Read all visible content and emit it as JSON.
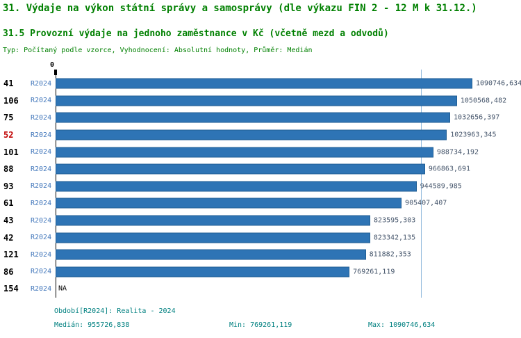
{
  "title1": "31. Výdaje na výkon státní správy a samosprávy (dle výkazu FIN 2 - 12 M k 31.12.)",
  "title2": "31.5 Provozní výdaje na jednoho zaměstnance v Kč (včetně mezd a odvodů)",
  "subtitle": "Typ: Počítaný podle vzorce, Vyhodnocení: Absolutní hodnoty, Průměr: Medián",
  "chart_data": {
    "type": "bar",
    "orientation": "horizontal",
    "axis_origin_label": "0",
    "series_label": "R2024",
    "xmax": 1090746.634,
    "median_value": 955726.838,
    "bar_color": "#2e74b5",
    "median_line_color": "#8fb8dc",
    "rows": [
      {
        "id": "41",
        "period": "R2024",
        "value": 1090746.634,
        "label": "1090746,634",
        "highlight": false
      },
      {
        "id": "106",
        "period": "R2024",
        "value": 1050568.482,
        "label": "1050568,482",
        "highlight": false
      },
      {
        "id": "75",
        "period": "R2024",
        "value": 1032656.397,
        "label": "1032656,397",
        "highlight": false
      },
      {
        "id": "52",
        "period": "R2024",
        "value": 1023963.345,
        "label": "1023963,345",
        "highlight": true
      },
      {
        "id": "101",
        "period": "R2024",
        "value": 988734.192,
        "label": "988734,192",
        "highlight": false
      },
      {
        "id": "88",
        "period": "R2024",
        "value": 966863.691,
        "label": "966863,691",
        "highlight": false
      },
      {
        "id": "93",
        "period": "R2024",
        "value": 944589.985,
        "label": "944589,985",
        "highlight": false
      },
      {
        "id": "61",
        "period": "R2024",
        "value": 905407.407,
        "label": "905407,407",
        "highlight": false
      },
      {
        "id": "43",
        "period": "R2024",
        "value": 823595.303,
        "label": "823595,303",
        "highlight": false
      },
      {
        "id": "42",
        "period": "R2024",
        "value": 823342.135,
        "label": "823342,135",
        "highlight": false
      },
      {
        "id": "121",
        "period": "R2024",
        "value": 811882.353,
        "label": "811882,353",
        "highlight": false
      },
      {
        "id": "86",
        "period": "R2024",
        "value": 769261.119,
        "label": "769261,119",
        "highlight": false
      },
      {
        "id": "154",
        "period": "R2024",
        "value": null,
        "label": "NA",
        "highlight": false
      }
    ]
  },
  "footer": {
    "period_line": "Období[R2024]: Realita - 2024",
    "median": "Medián: 955726,838",
    "min": "Min: 769261,119",
    "max": "Max: 1090746,634"
  }
}
